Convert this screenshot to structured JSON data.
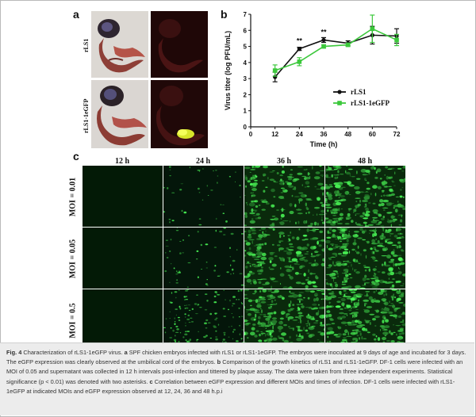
{
  "panels": {
    "a": "a",
    "b": "b",
    "c": "c"
  },
  "panel_a": {
    "row_labels": [
      "rLS1",
      "rLS1-1eGFP"
    ]
  },
  "chart_data": {
    "type": "line",
    "title": "",
    "xlabel": "Time (h)",
    "ylabel": "Virus titer (log PFU/mL)",
    "xlim": [
      0,
      72
    ],
    "ylim": [
      0,
      7
    ],
    "xticks": [
      0,
      12,
      24,
      36,
      48,
      60,
      72
    ],
    "yticks": [
      0,
      1,
      2,
      3,
      4,
      5,
      6,
      7
    ],
    "legend_position": "right",
    "series": [
      {
        "name": "rLS1",
        "color": "#111111",
        "marker": "circle",
        "x": [
          12,
          24,
          36,
          48,
          60,
          72
        ],
        "y": [
          3.1,
          4.85,
          5.4,
          5.2,
          5.7,
          5.65
        ],
        "err": [
          0.3,
          0.1,
          0.15,
          0.15,
          0.55,
          0.45
        ]
      },
      {
        "name": "rLS1-1eGFP",
        "color": "#3cc83c",
        "marker": "square",
        "x": [
          12,
          24,
          36,
          48,
          60,
          72
        ],
        "y": [
          3.5,
          4.05,
          5.0,
          5.1,
          6.1,
          5.4
        ],
        "err": [
          0.35,
          0.25,
          0.1,
          0.1,
          0.85,
          0.35
        ]
      }
    ],
    "annotations": [
      {
        "x": 24,
        "y": 5.2,
        "text": "**"
      },
      {
        "x": 36,
        "y": 5.75,
        "text": "**"
      }
    ]
  },
  "panel_c": {
    "columns": [
      "12 h",
      "24 h",
      "36 h",
      "48 h"
    ],
    "rows": [
      "MOI = 0.01",
      "MOI = 0.05",
      "MOI = 0.5"
    ]
  },
  "caption": {
    "fig_label": "Fig. 4",
    "title_text": " Characterization of rLS1-1eGFP virus. ",
    "a_label": "a",
    "a_text": " SPF chicken embryos infected with rLS1 or rLS1-1eGFP. The embryos were inoculated at 9 days of age and incubated for 3 days. The eGFP expression was clearly observed at the umbilical cord of the embryos. ",
    "b_label": "b",
    "b_text": " Comparison of the growth kinetics of rLS1 and rLS1-1eGFP. DF-1 cells were infected with an MOI of 0.05 and supernatant was collected in 12 h intervals post-infection and tittered by plaque assay. The data were taken from three independent experiments. Statistical significance (p < 0.01) was denoted with two asterisks. ",
    "c_label": "c",
    "c_text": " Correlation between eGFP expression and different MOIs and times of infection. DF-1 cells were infected with rLS1-1eGFP at indicated MOIs and eGFP expression observed at 12, 24, 36 and 48 h.p.i"
  }
}
